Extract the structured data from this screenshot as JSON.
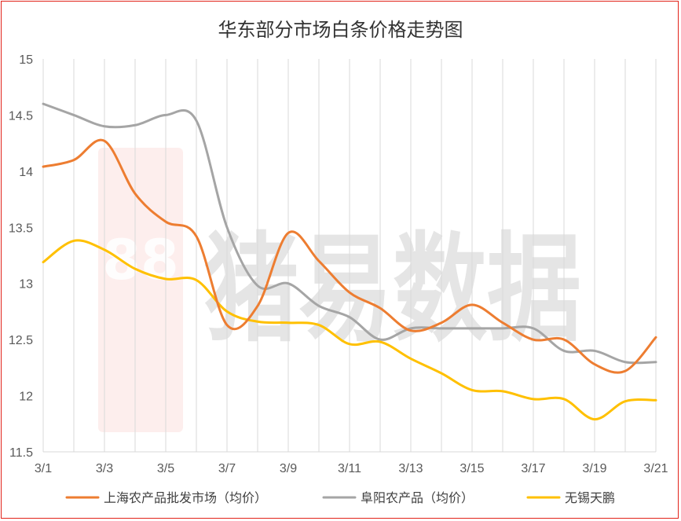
{
  "chart_data": {
    "type": "line",
    "title": "华东部分市场白条价格走势图",
    "x": [
      "3/1",
      "3/2",
      "3/3",
      "3/4",
      "3/5",
      "3/6",
      "3/7",
      "3/8",
      "3/9",
      "3/10",
      "3/11",
      "3/12",
      "3/13",
      "3/14",
      "3/15",
      "3/16",
      "3/17",
      "3/18",
      "3/19",
      "3/20",
      "3/21"
    ],
    "x_tick_labels": [
      "3/1",
      "3/3",
      "3/5",
      "3/7",
      "3/9",
      "3/11",
      "3/13",
      "3/15",
      "3/17",
      "3/19",
      "3/21"
    ],
    "y_tick_labels": [
      "15",
      "14.5",
      "14",
      "13.5",
      "13",
      "12.5",
      "12",
      "11.5"
    ],
    "ylim": [
      11.5,
      15
    ],
    "grid": "vertical",
    "legend_position": "bottom",
    "series": [
      {
        "name": "上海农产品批发市场（均价）",
        "color": "#ed7d31",
        "values": [
          14.04,
          14.1,
          14.27,
          13.8,
          13.55,
          13.42,
          12.63,
          12.8,
          13.45,
          13.2,
          12.92,
          12.78,
          12.58,
          12.65,
          12.81,
          12.65,
          12.5,
          12.5,
          12.28,
          12.22,
          12.52
        ]
      },
      {
        "name": "阜阳农产品（均价）",
        "color": "#a5a5a5",
        "values": [
          14.6,
          14.5,
          14.4,
          14.41,
          14.5,
          14.45,
          13.5,
          12.98,
          13.0,
          12.8,
          12.7,
          12.5,
          12.6,
          12.6,
          12.6,
          12.6,
          12.6,
          12.4,
          12.4,
          12.3,
          12.3
        ]
      },
      {
        "name": "无锡天鹏",
        "color": "#ffc000",
        "values": [
          13.19,
          13.38,
          13.3,
          13.13,
          13.04,
          13.03,
          12.75,
          12.66,
          12.65,
          12.63,
          12.46,
          12.48,
          12.33,
          12.2,
          12.05,
          12.04,
          11.97,
          11.97,
          11.79,
          11.95,
          11.96
        ]
      }
    ]
  },
  "watermark": {
    "text": "猪易数据",
    "logo_digits": "88",
    "color": "#e2231a"
  }
}
